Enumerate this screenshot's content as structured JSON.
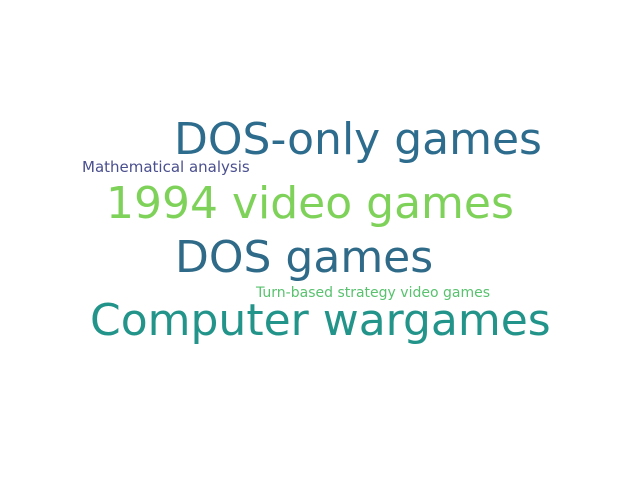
{
  "words": [
    {
      "text": "DOS-only games",
      "color": "#2d6c8d"
    },
    {
      "text": "Mathematical analysis",
      "color": "#4a4f8e"
    },
    {
      "text": "1994 video games",
      "color": "#7ed25a"
    },
    {
      "text": "DOS games",
      "color": "#2f6a88"
    },
    {
      "text": "Turn-based strategy video games",
      "color": "#58c26e"
    },
    {
      "text": "Computer wargames",
      "color": "#23948a"
    }
  ]
}
